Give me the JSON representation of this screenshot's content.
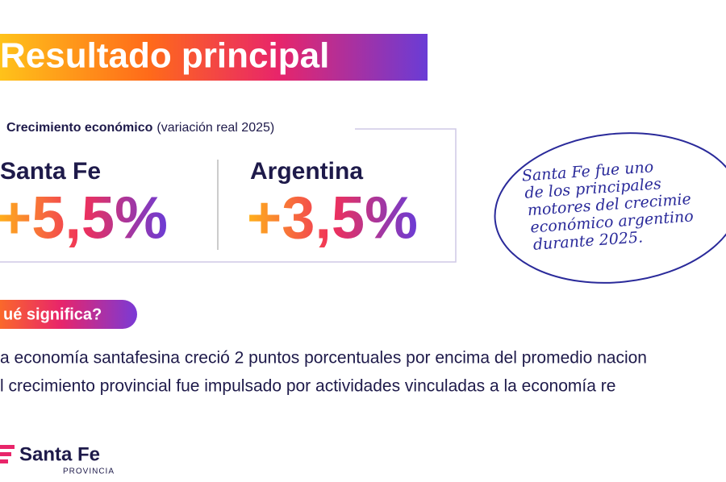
{
  "header": {
    "title": "Resultado principal"
  },
  "panel": {
    "label_bold": "Crecimiento económico",
    "label_rest": "(variación real 2025)",
    "items": [
      {
        "name": "Santa Fe",
        "value": "+5,5%"
      },
      {
        "name": "Argentina",
        "value": "+3,5%"
      }
    ]
  },
  "note": {
    "lines": [
      "Santa Fe fue uno",
      "de los principales",
      "motores del crecimie",
      "económico argentino",
      "durante 2025."
    ]
  },
  "section": {
    "title": "ué significa?",
    "lines": [
      "a economía santafesina creció 2 puntos porcentuales por encima del promedio nacion",
      "l crecimiento provincial fue impulsado por actividades vinculadas a la economía re"
    ]
  },
  "logo": {
    "name": "Santa Fe",
    "sub": "PROVINCIA"
  }
}
